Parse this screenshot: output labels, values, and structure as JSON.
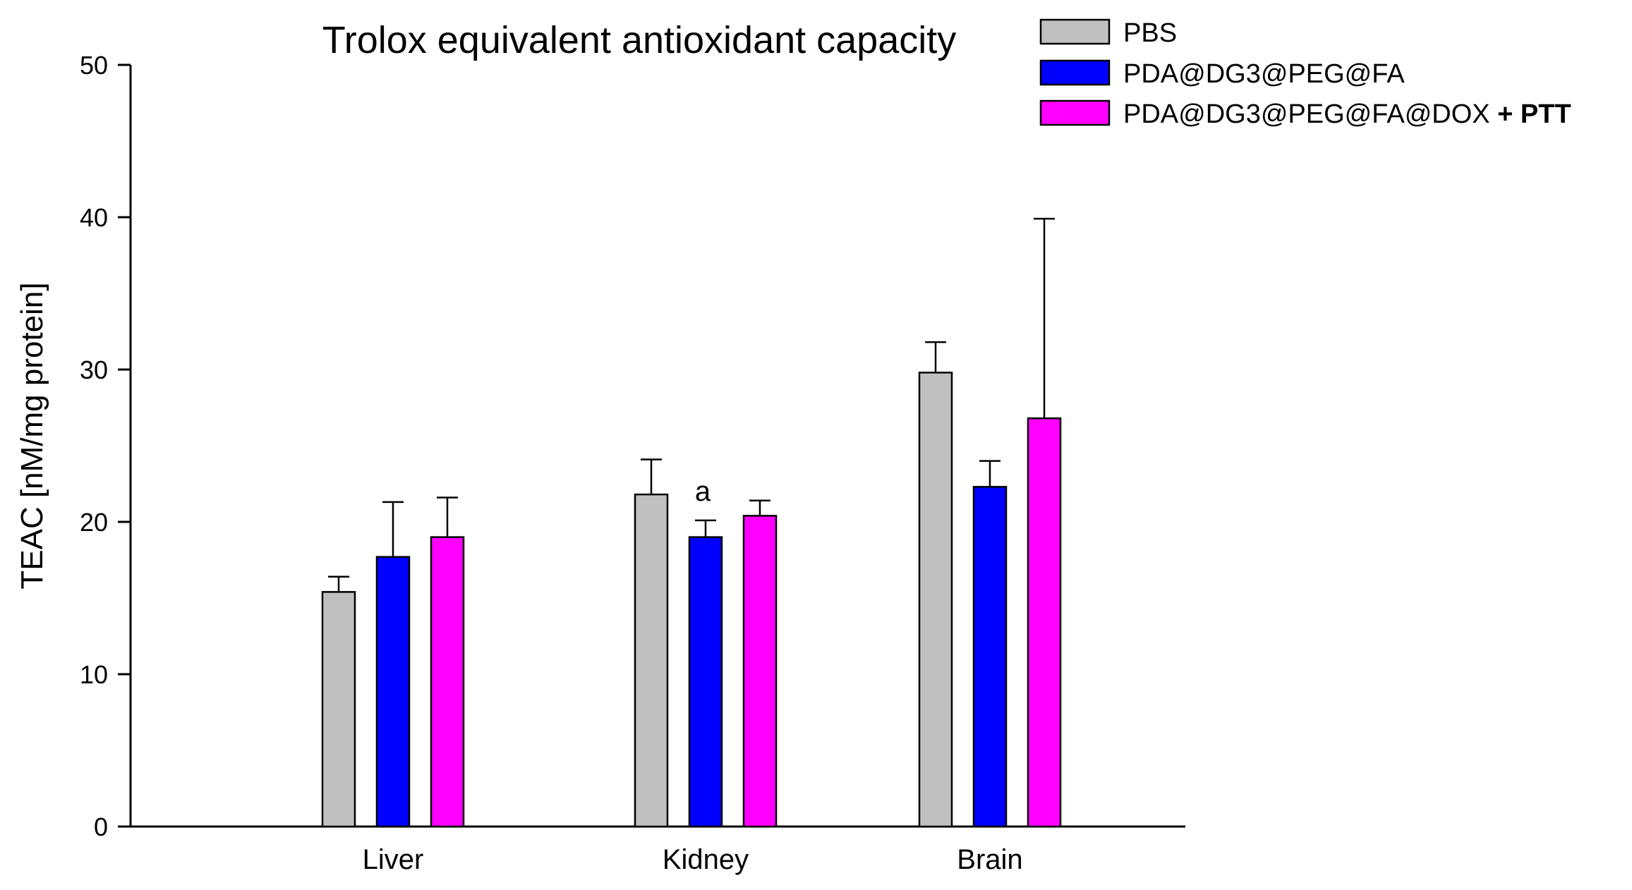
{
  "chart_data": {
    "type": "bar",
    "title": "Trolox equivalent antioxidant capacity",
    "xlabel": "",
    "ylabel": "TEAC [nM/mg protein]",
    "ylim": [
      0,
      50
    ],
    "yticks": [
      0,
      10,
      20,
      30,
      40,
      50
    ],
    "categories": [
      "Liver",
      "Kidney",
      "Brain"
    ],
    "series": [
      {
        "name": "PBS",
        "color": "#c0c0c0",
        "values": [
          15.4,
          21.8,
          29.8
        ],
        "errors": [
          1.0,
          2.3,
          2.0
        ]
      },
      {
        "name": "PDA@DG3@PEG@FA",
        "color": "#0000ff",
        "values": [
          17.7,
          19.0,
          22.3
        ],
        "errors": [
          3.6,
          1.1,
          1.7
        ]
      },
      {
        "name": "PDA@DG3@PEG@FA@DOX",
        "name_suffix": "+ PTT",
        "color": "#ff00ff",
        "values": [
          19.0,
          20.4,
          26.8
        ],
        "errors": [
          2.6,
          1.0,
          13.1
        ]
      }
    ],
    "annotations": [
      {
        "text": "a",
        "category": "Kidney",
        "series_index": 1
      }
    ],
    "legend_position": "top-right",
    "grid": false
  }
}
